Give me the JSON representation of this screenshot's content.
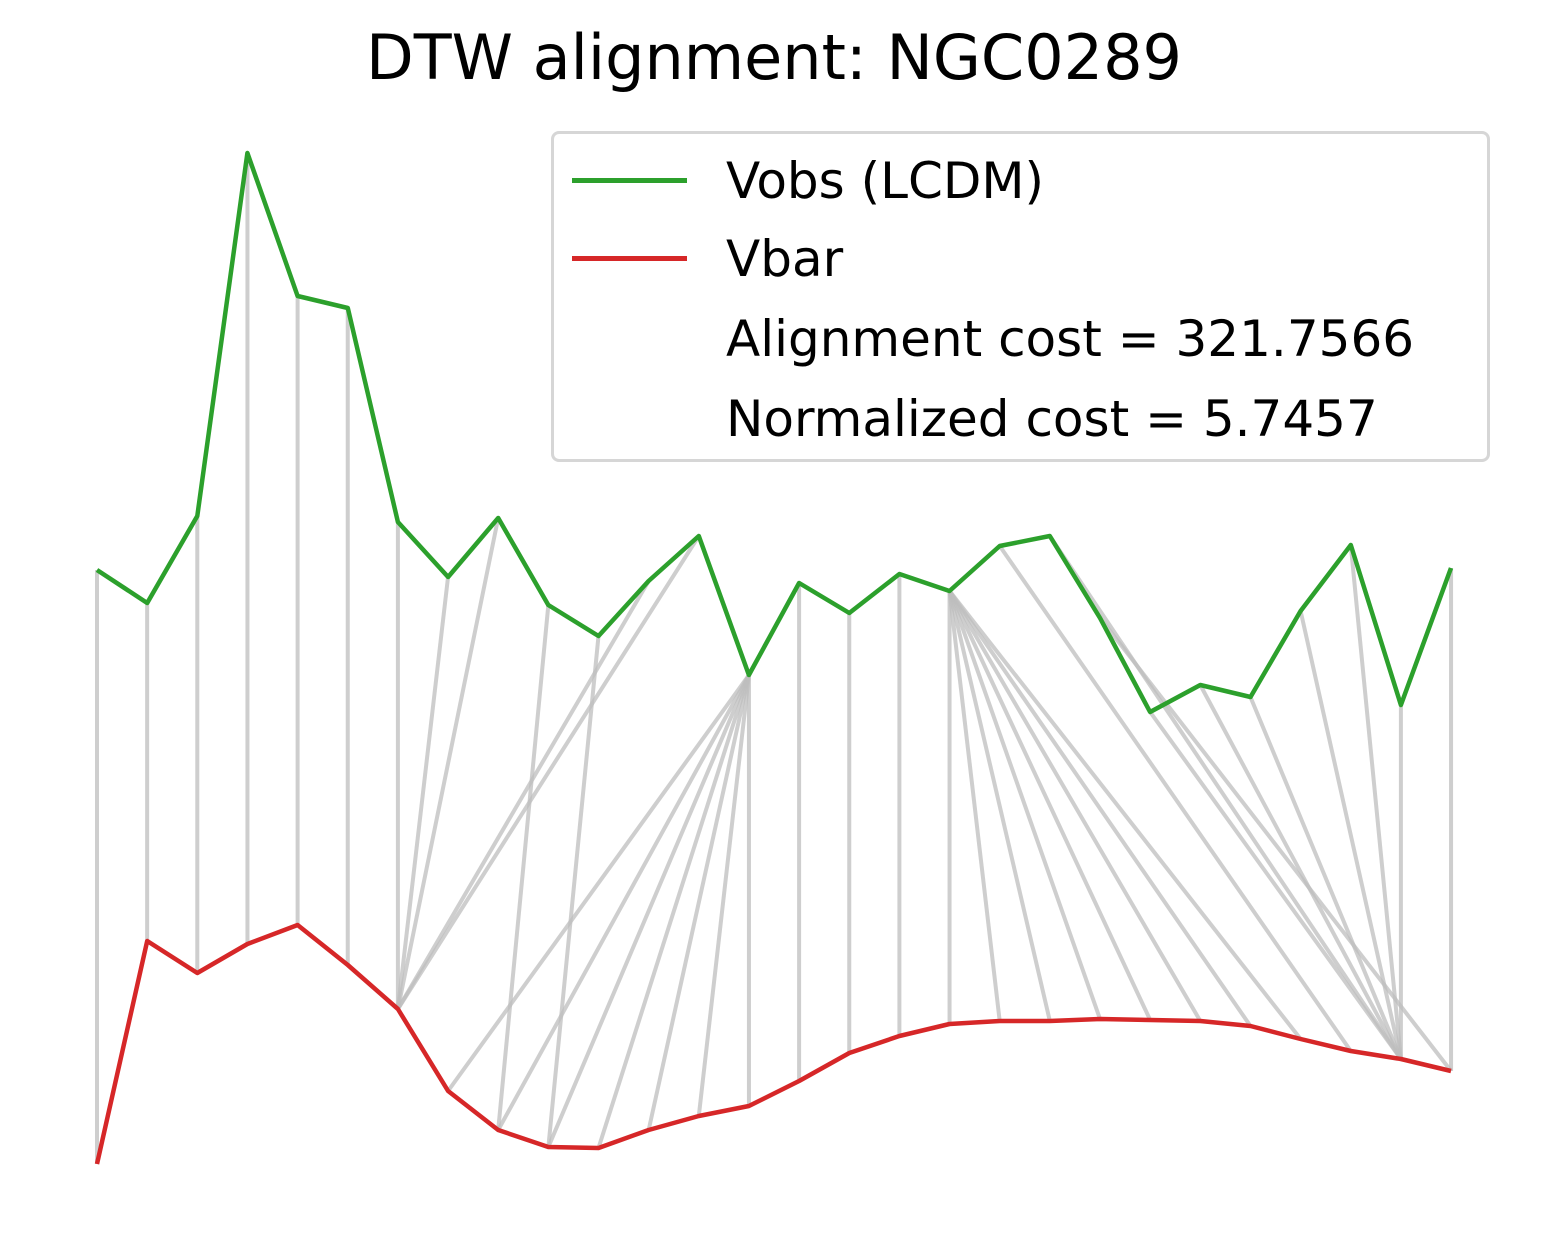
{
  "chart_data": {
    "type": "line",
    "title": "DTW alignment: NGC0289",
    "xlabel": "",
    "ylabel": "",
    "axes_visible": false,
    "grid": false,
    "legend_position": "top-right",
    "series": [
      {
        "name": "Vobs (LCDM)",
        "color": "#2ca02c",
        "values": [
          570,
          603,
          516,
          153,
          296,
          308,
          522,
          577,
          518,
          605,
          636,
          581,
          536,
          675,
          583,
          613,
          574,
          591,
          546,
          536,
          618,
          712,
          685,
          697,
          611,
          545,
          705,
          568
        ]
      },
      {
        "name": "Vbar",
        "color": "#d62728",
        "values": [
          1164,
          941,
          973,
          944,
          925,
          965,
          1009,
          1091,
          1130,
          1147,
          1148,
          1130,
          1116,
          1106,
          1081,
          1053,
          1036,
          1024,
          1021,
          1021,
          1019,
          1020,
          1021,
          1026,
          1039,
          1051,
          1059,
          1071
        ]
      }
    ],
    "alignment_pairs": [
      [
        0,
        0
      ],
      [
        1,
        1
      ],
      [
        2,
        2
      ],
      [
        3,
        3
      ],
      [
        4,
        4
      ],
      [
        5,
        5
      ],
      [
        6,
        6
      ],
      [
        7,
        6
      ],
      [
        8,
        6
      ],
      [
        9,
        8
      ],
      [
        10,
        9
      ],
      [
        11,
        6
      ],
      [
        12,
        6
      ],
      [
        13,
        7
      ],
      [
        13,
        8
      ],
      [
        13,
        9
      ],
      [
        13,
        10
      ],
      [
        13,
        11
      ],
      [
        13,
        12
      ],
      [
        13,
        13
      ],
      [
        14,
        14
      ],
      [
        15,
        15
      ],
      [
        16,
        16
      ],
      [
        17,
        17
      ],
      [
        17,
        18
      ],
      [
        17,
        19
      ],
      [
        17,
        20
      ],
      [
        17,
        21
      ],
      [
        17,
        22
      ],
      [
        17,
        23
      ],
      [
        17,
        24
      ],
      [
        18,
        25
      ],
      [
        19,
        26
      ],
      [
        20,
        27
      ],
      [
        21,
        26
      ],
      [
        22,
        26
      ],
      [
        23,
        26
      ],
      [
        24,
        26
      ],
      [
        25,
        26
      ],
      [
        26,
        26
      ],
      [
        27,
        27
      ]
    ],
    "alignment_color": "#cccccc",
    "legend_extra": [
      "Alignment cost = 321.7566",
      "Normalized cost = 5.7457"
    ]
  }
}
